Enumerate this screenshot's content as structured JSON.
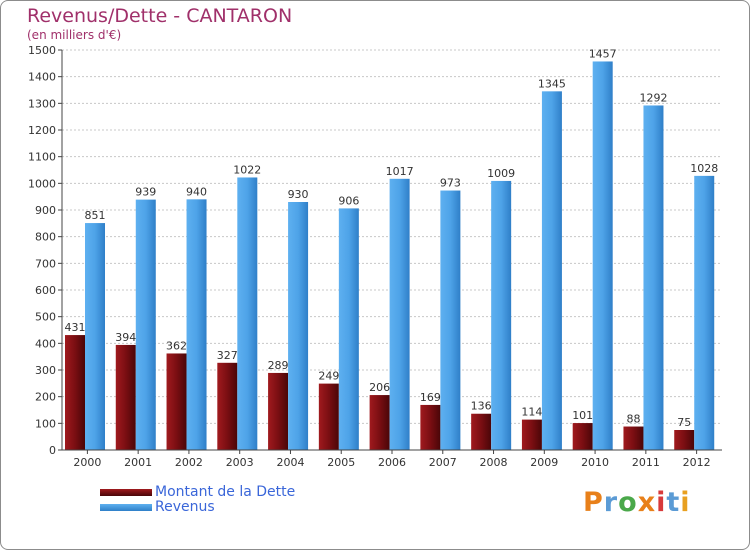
{
  "title": "Revenus/Dette - CANTARON",
  "subtitle": "(en milliers d'€)",
  "legend": {
    "debt_label": "Montant de la Dette",
    "revenue_label": "Revenus"
  },
  "logo": {
    "letters": [
      "P",
      "r",
      "o",
      "x",
      "i",
      "t",
      "i"
    ],
    "colors": [
      "#e8801a",
      "#5b9bd5",
      "#4aa84a",
      "#e8801a",
      "#d83a3a",
      "#5b9bd5",
      "#e8a020"
    ]
  },
  "colors": {
    "debt": "#7a0e12",
    "revenue": "#4ea3e8",
    "title": "#a0306a",
    "legend_text": "#3a66d9"
  },
  "chart_data": {
    "type": "bar",
    "title": "Revenus/Dette - CANTARON",
    "subtitle": "(en milliers d'€)",
    "categories": [
      "2000",
      "2001",
      "2002",
      "2003",
      "2004",
      "2005",
      "2006",
      "2007",
      "2008",
      "2009",
      "2010",
      "2011",
      "2012"
    ],
    "series": [
      {
        "name": "Montant de la Dette",
        "values": [
          431,
          394,
          362,
          327,
          289,
          249,
          206,
          169,
          136,
          114,
          101,
          88,
          75
        ]
      },
      {
        "name": "Revenus",
        "values": [
          851,
          939,
          940,
          1022,
          930,
          906,
          1017,
          973,
          1009,
          1345,
          1457,
          1292,
          1028
        ]
      }
    ],
    "ylim": [
      0,
      1500
    ],
    "yticks": [
      0,
      100,
      200,
      300,
      400,
      500,
      600,
      700,
      800,
      900,
      1000,
      1100,
      1200,
      1300,
      1400,
      1500
    ],
    "grid": true,
    "legend": "bottom-left"
  }
}
